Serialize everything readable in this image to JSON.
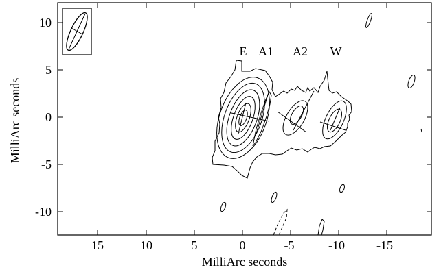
{
  "figure": {
    "xlabel": "MilliArc seconds",
    "ylabel": "MilliArc seconds",
    "x_range": [
      19.0,
      -20.0
    ],
    "y_range": [
      -12.5,
      12.0
    ],
    "x_ticks": [
      {
        "value": 15,
        "label": "15"
      },
      {
        "value": 10,
        "label": "10"
      },
      {
        "value": 5,
        "label": "5"
      },
      {
        "value": 0,
        "label": "0"
      },
      {
        "value": -5,
        "label": "-5"
      },
      {
        "value": -10,
        "label": "-10"
      },
      {
        "value": -15,
        "label": "-15"
      }
    ],
    "y_ticks": [
      {
        "value": 10,
        "label": "10"
      },
      {
        "value": 5,
        "label": "5"
      },
      {
        "value": 0,
        "label": "0"
      },
      {
        "value": -5,
        "label": "-5"
      },
      {
        "value": -10,
        "label": "-10"
      }
    ],
    "components": [
      {
        "id": "E",
        "label": "E",
        "x": 0.0,
        "y": 0.0
      },
      {
        "id": "A1",
        "label": "A1",
        "x": -2.3,
        "y": 0.3
      },
      {
        "id": "A2",
        "label": "A2",
        "x": -5.8,
        "y": -0.2
      },
      {
        "id": "W",
        "label": "W",
        "x": -9.6,
        "y": -0.7
      }
    ],
    "line_color": "#000000"
  }
}
